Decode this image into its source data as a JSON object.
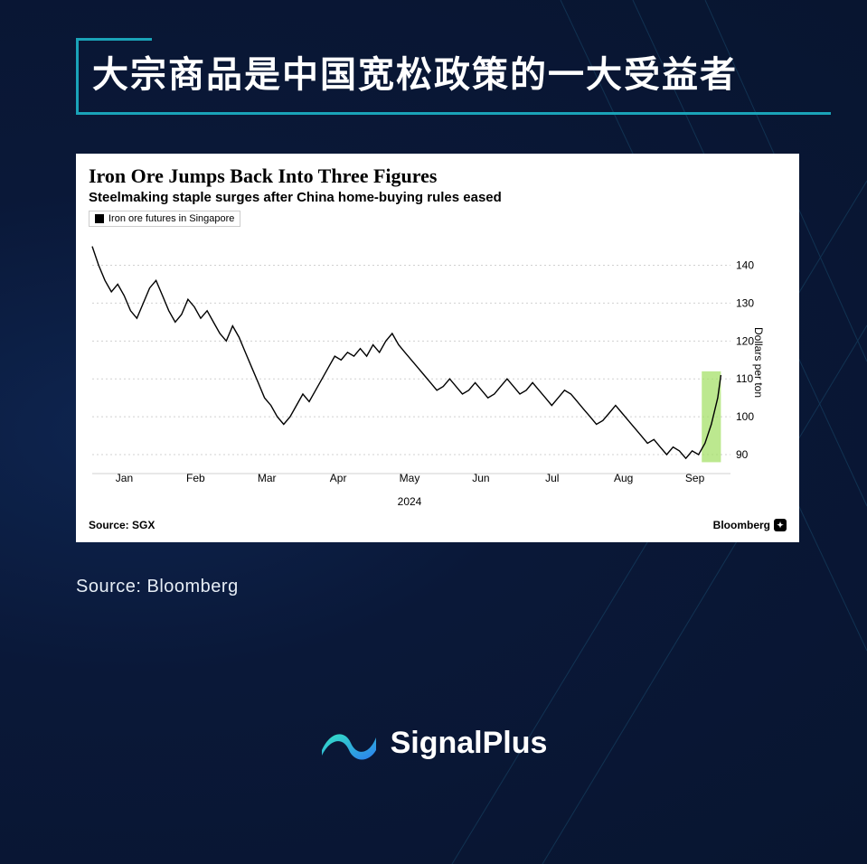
{
  "page": {
    "background_color": "#0a1838",
    "accent_color": "#1aa3b8"
  },
  "header": {
    "headline": "大宗商品是中国宽松政策的一大受益者",
    "headline_color": "#ffffff",
    "headline_fontsize": 40,
    "rule_color": "#1aa3b8"
  },
  "chart": {
    "type": "line",
    "title": "Iron Ore Jumps Back Into Three Figures",
    "title_fontsize": 22,
    "subtitle": "Steelmaking staple surges after China home-buying rules eased",
    "subtitle_fontsize": 15,
    "legend_label": "Iron ore futures in Singapore",
    "legend_swatch_color": "#000000",
    "background_color": "#ffffff",
    "grid_color": "#d0d0d0",
    "line_color": "#000000",
    "line_width": 1.4,
    "highlight_band": {
      "x_start": 0.955,
      "x_end": 0.985,
      "color": "#a6e06a",
      "opacity": 0.75
    },
    "x_ticks": [
      "Jan",
      "Feb",
      "Mar",
      "Apr",
      "May",
      "Jun",
      "Jul",
      "Aug",
      "Sep"
    ],
    "x_year_label": "2024",
    "y_axis_label": "Dollars per ton",
    "y_ticks": [
      90,
      100,
      110,
      120,
      130,
      140
    ],
    "ylim": [
      85,
      148
    ],
    "xlim": [
      0,
      1
    ],
    "tick_fontsize": 12,
    "series": {
      "name": "iron_ore_futures_singapore",
      "x": [
        0.0,
        0.01,
        0.02,
        0.03,
        0.04,
        0.05,
        0.06,
        0.07,
        0.08,
        0.09,
        0.1,
        0.11,
        0.12,
        0.13,
        0.14,
        0.15,
        0.16,
        0.17,
        0.18,
        0.19,
        0.2,
        0.21,
        0.22,
        0.23,
        0.24,
        0.25,
        0.26,
        0.27,
        0.28,
        0.29,
        0.3,
        0.31,
        0.32,
        0.33,
        0.34,
        0.35,
        0.36,
        0.37,
        0.38,
        0.39,
        0.4,
        0.41,
        0.42,
        0.43,
        0.44,
        0.45,
        0.46,
        0.47,
        0.48,
        0.49,
        0.5,
        0.51,
        0.52,
        0.53,
        0.54,
        0.55,
        0.56,
        0.57,
        0.58,
        0.59,
        0.6,
        0.61,
        0.62,
        0.63,
        0.64,
        0.65,
        0.66,
        0.67,
        0.68,
        0.69,
        0.7,
        0.71,
        0.72,
        0.73,
        0.74,
        0.75,
        0.76,
        0.77,
        0.78,
        0.79,
        0.8,
        0.81,
        0.82,
        0.83,
        0.84,
        0.85,
        0.86,
        0.87,
        0.88,
        0.89,
        0.9,
        0.91,
        0.92,
        0.93,
        0.94,
        0.95,
        0.96,
        0.97,
        0.98,
        0.985
      ],
      "y": [
        145,
        140,
        136,
        133,
        135,
        132,
        128,
        126,
        130,
        134,
        136,
        132,
        128,
        125,
        127,
        131,
        129,
        126,
        128,
        125,
        122,
        120,
        124,
        121,
        117,
        113,
        109,
        105,
        103,
        100,
        98,
        100,
        103,
        106,
        104,
        107,
        110,
        113,
        116,
        115,
        117,
        116,
        118,
        116,
        119,
        117,
        120,
        122,
        119,
        117,
        115,
        113,
        111,
        109,
        107,
        108,
        110,
        108,
        106,
        107,
        109,
        107,
        105,
        106,
        108,
        110,
        108,
        106,
        107,
        109,
        107,
        105,
        103,
        105,
        107,
        106,
        104,
        102,
        100,
        98,
        99,
        101,
        103,
        101,
        99,
        97,
        95,
        93,
        94,
        92,
        90,
        92,
        91,
        89,
        91,
        90,
        93,
        98,
        105,
        111
      ]
    },
    "footer_source_label": "Source: SGX",
    "footer_brand": "Bloomberg"
  },
  "outer_source": "Source: Bloomberg",
  "brand": {
    "name": "SignalPlus",
    "logo_gradient_from": "#35e3c3",
    "logo_gradient_to": "#2b7ef0"
  }
}
